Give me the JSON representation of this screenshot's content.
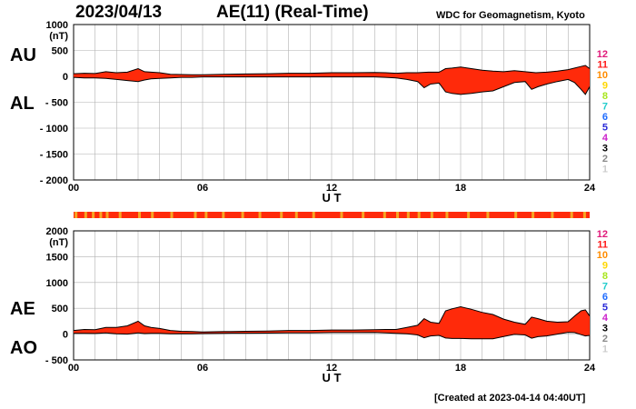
{
  "header": {
    "date": "2023/04/13",
    "title": "AE(11) (Real-Time)",
    "credit": "WDC for Geomagnetism, Kyoto"
  },
  "footer": {
    "created": "[Created at 2023-04-14 04:40UT]"
  },
  "colors": {
    "fill_main": "#ff2a0a",
    "fill_dim": "#f5a623",
    "outline": "#000000",
    "grid": "#b0b0b0"
  },
  "legend": {
    "levels": [
      {
        "label": "12",
        "color": "#e0197a"
      },
      {
        "label": "11",
        "color": "#ff1a1a"
      },
      {
        "label": "10",
        "color": "#ff8c00"
      },
      {
        "label": "9",
        "color": "#ffd700"
      },
      {
        "label": "8",
        "color": "#a8e61d"
      },
      {
        "label": "7",
        "color": "#22cccc"
      },
      {
        "label": "6",
        "color": "#1e6bff"
      },
      {
        "label": "5",
        "color": "#2a2ad8"
      },
      {
        "label": "4",
        "color": "#cc22cc"
      },
      {
        "label": "3",
        "color": "#000000"
      },
      {
        "label": "2",
        "color": "#888888"
      },
      {
        "label": "1",
        "color": "#cccccc"
      }
    ]
  },
  "station_bar": {
    "dim_hours": [
      0.05,
      0.5,
      0.85,
      1.2,
      1.5,
      2.1,
      3.0,
      3.6,
      4.5,
      5.6,
      6.1,
      6.9,
      7.8,
      8.6,
      9.6,
      10.3,
      11.1,
      12.4,
      13.4,
      14.4,
      15.0,
      15.5,
      16.0,
      16.6,
      17.3,
      18.3,
      19.2,
      20.5,
      21.3,
      22.2,
      23.1,
      23.7
    ]
  },
  "chart_data": [
    {
      "type": "area",
      "panel": "AU/AL",
      "labels": {
        "upper": "AU",
        "lower": "AL"
      },
      "yunit": "(nT)",
      "xlabel": "U T",
      "ylim": [
        -2000,
        1000
      ],
      "yticks": [
        "1000",
        "500",
        "0",
        "- 500",
        "- 1000",
        "- 1500",
        "- 2000"
      ],
      "yticks_values": [
        1000,
        500,
        0,
        -500,
        -1000,
        -1500,
        -2000
      ],
      "xlim": [
        0,
        24
      ],
      "xticks": [
        {
          "value": 0,
          "label": "00"
        },
        {
          "value": 6,
          "label": "06"
        },
        {
          "value": 12,
          "label": "12"
        },
        {
          "value": 18,
          "label": "18"
        },
        {
          "value": 24,
          "label": "24"
        }
      ],
      "grid": true,
      "series": [
        {
          "name": "AU",
          "x": [
            0,
            0.5,
            1,
            1.5,
            2,
            2.5,
            3,
            3.3,
            3.6,
            4,
            4.5,
            5,
            5.5,
            6,
            7,
            8,
            9,
            10,
            11,
            12,
            13,
            14,
            14.5,
            15,
            15.5,
            16,
            16.5,
            17,
            17.3,
            17.6,
            18,
            18.5,
            19,
            19.5,
            20,
            20.5,
            21,
            21.5,
            22,
            22.5,
            23,
            23.5,
            23.8,
            24
          ],
          "values": [
            50,
            60,
            55,
            90,
            70,
            80,
            150,
            90,
            80,
            70,
            40,
            35,
            30,
            30,
            40,
            45,
            50,
            60,
            60,
            70,
            70,
            75,
            70,
            60,
            70,
            70,
            80,
            80,
            150,
            160,
            180,
            150,
            120,
            100,
            90,
            110,
            90,
            70,
            80,
            100,
            130,
            180,
            210,
            150
          ]
        },
        {
          "name": "AL",
          "x": [
            0,
            0.5,
            1,
            1.5,
            2,
            2.5,
            3,
            3.3,
            3.6,
            4,
            4.5,
            5,
            5.5,
            6,
            7,
            8,
            9,
            10,
            11,
            12,
            13,
            14,
            14.5,
            15,
            15.5,
            16,
            16.3,
            16.6,
            17,
            17.3,
            17.6,
            18,
            18.5,
            19,
            19.5,
            20,
            20.5,
            21,
            21.3,
            21.6,
            22,
            22.5,
            23,
            23.3,
            23.6,
            23.8,
            24
          ],
          "values": [
            -20,
            -30,
            -30,
            -40,
            -60,
            -80,
            -100,
            -70,
            -50,
            -40,
            -30,
            -20,
            -20,
            -10,
            -10,
            -10,
            -10,
            -10,
            -10,
            -10,
            -10,
            -10,
            -20,
            -30,
            -60,
            -100,
            -220,
            -150,
            -130,
            -300,
            -330,
            -350,
            -330,
            -300,
            -280,
            -200,
            -120,
            -100,
            -250,
            -200,
            -150,
            -100,
            -60,
            -120,
            -250,
            -350,
            -200
          ]
        }
      ]
    },
    {
      "type": "area",
      "panel": "AE/AO",
      "labels": {
        "upper": "AE",
        "lower": "AO"
      },
      "yunit": "(nT)",
      "xlabel": "U T",
      "ylim": [
        -500,
        2000
      ],
      "yticks": [
        "2000",
        "1500",
        "1000",
        "500",
        "0",
        "- 500"
      ],
      "yticks_values": [
        2000,
        1500,
        1000,
        500,
        0,
        -500
      ],
      "xlim": [
        0,
        24
      ],
      "xticks": [
        {
          "value": 0,
          "label": "00"
        },
        {
          "value": 6,
          "label": "06"
        },
        {
          "value": 12,
          "label": "12"
        },
        {
          "value": 18,
          "label": "18"
        },
        {
          "value": 24,
          "label": "24"
        }
      ],
      "grid": true,
      "series": [
        {
          "name": "AE",
          "x": [
            0,
            0.5,
            1,
            1.5,
            2,
            2.5,
            3,
            3.3,
            3.6,
            4,
            4.5,
            5,
            5.5,
            6,
            7,
            8,
            9,
            10,
            11,
            12,
            13,
            14,
            14.5,
            15,
            15.5,
            16,
            16.3,
            16.6,
            17,
            17.3,
            17.6,
            18,
            18.5,
            19,
            19.5,
            20,
            20.5,
            21,
            21.3,
            21.6,
            22,
            22.5,
            23,
            23.3,
            23.6,
            23.8,
            24
          ],
          "values": [
            70,
            90,
            85,
            130,
            130,
            160,
            250,
            160,
            130,
            110,
            70,
            55,
            50,
            40,
            50,
            55,
            60,
            70,
            70,
            80,
            80,
            85,
            90,
            90,
            130,
            170,
            300,
            230,
            210,
            450,
            490,
            530,
            480,
            420,
            380,
            290,
            230,
            190,
            330,
            300,
            250,
            230,
            240,
            350,
            450,
            470,
            350
          ]
        },
        {
          "name": "AO",
          "x": [
            0,
            0.5,
            1,
            1.5,
            2,
            2.5,
            3,
            3.3,
            3.6,
            4,
            4.5,
            5,
            5.5,
            6,
            7,
            8,
            9,
            10,
            11,
            12,
            13,
            14,
            14.5,
            15,
            15.5,
            16,
            16.3,
            16.6,
            17,
            17.3,
            17.6,
            18,
            18.5,
            19,
            19.5,
            20,
            20.5,
            21,
            21.3,
            21.6,
            22,
            22.5,
            23,
            23.3,
            23.6,
            23.8,
            24
          ],
          "values": [
            15,
            15,
            12,
            25,
            5,
            0,
            25,
            10,
            15,
            15,
            5,
            8,
            5,
            10,
            15,
            18,
            20,
            25,
            25,
            30,
            30,
            32,
            25,
            15,
            5,
            -15,
            -70,
            -35,
            -25,
            -75,
            -85,
            -85,
            -90,
            -90,
            -90,
            -45,
            -5,
            -15,
            -80,
            -50,
            -35,
            0,
            35,
            30,
            -10,
            -35,
            -25
          ]
        }
      ]
    }
  ]
}
